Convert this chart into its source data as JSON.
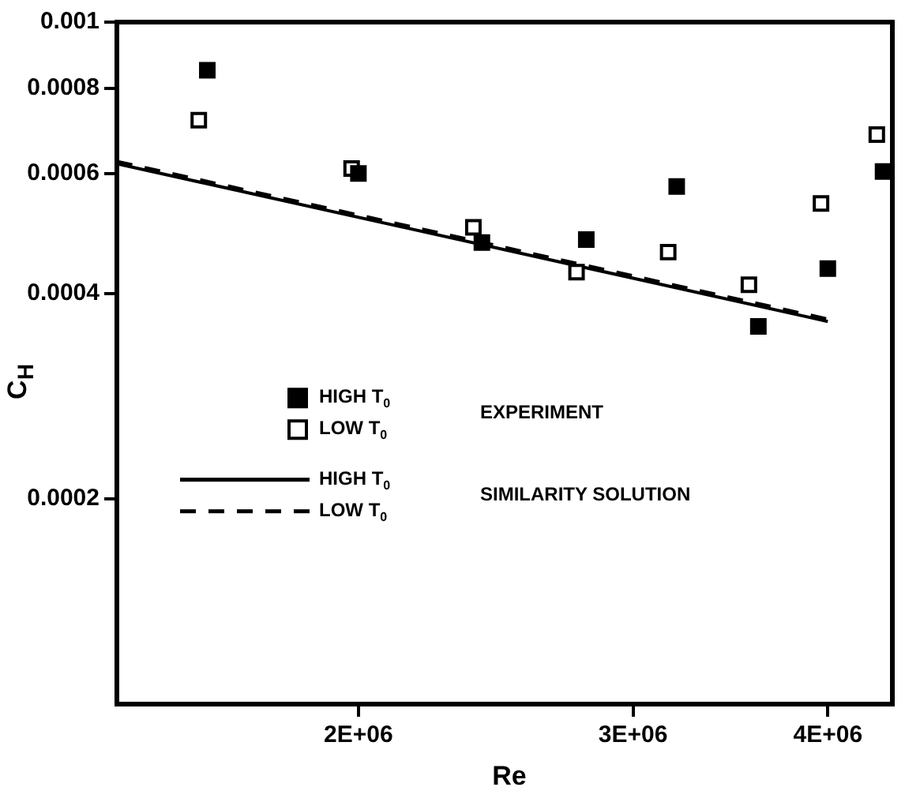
{
  "chart_data": {
    "type": "scatter",
    "xlabel": "Re",
    "ylabel": "C$_{H}$",
    "log": "xy",
    "grid": false,
    "legend": "left",
    "xlim": [
      1400000,
      4400000
    ],
    "xticks": [
      {
        "value": 2000000,
        "label": "2E+06"
      },
      {
        "value": 3000000,
        "label": "3E+06"
      },
      {
        "value": 4000000,
        "label": "4E+06"
      }
    ],
    "ylim": [
      0.0001,
      0.001
    ],
    "yticks": [
      0.0002,
      0.0004,
      0.0006,
      0.0008,
      0.001
    ],
    "annotations": [
      "EXPERIMENT",
      "SIMILARITY SOLUTION"
    ],
    "series": [
      {
        "name": "HIGH T$_{0}$",
        "marker": "square",
        "color": "#000000",
        "x": [
          1600000,
          2000000,
          2400000,
          2800000,
          3200000,
          3610000,
          4000000,
          4340000
        ],
        "values": [
          0.00085,
          0.0006,
          0.000475,
          0.00048,
          0.000574,
          0.000358,
          0.000435,
          0.000604
        ]
      },
      {
        "name": "LOW T$_{0}$",
        "marker": "square",
        "color": "#000000",
        "x": [
          1580000,
          1980000,
          2370000,
          2760000,
          3160000,
          3560000,
          3960000,
          4300000
        ],
        "values": [
          0.000718,
          0.00061,
          0.0005,
          0.00043,
          0.00046,
          0.000412,
          0.000542,
          0.000684
        ]
      },
      {
        "name": "HIGH T$_{0}$",
        "type": "line",
        "line_style": "solid",
        "color": "#000000",
        "x": [
          1400000,
          4000000
        ],
        "values": [
          0.00062,
          0.000364
        ]
      },
      {
        "name": "LOW T$_{0}$",
        "type": "line",
        "line_style": "dashed",
        "color": "#000000",
        "x": [
          1400000,
          4000000
        ],
        "values": [
          0.000625,
          0.000367
        ]
      }
    ]
  }
}
